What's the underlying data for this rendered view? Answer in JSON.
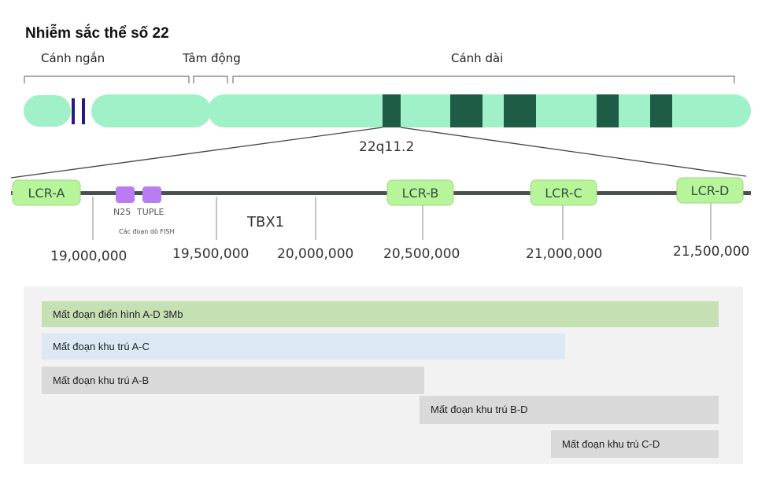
{
  "title": "Nhiễm sắc thể số 22",
  "regions": {
    "short_arm": "Cánh ngắn",
    "centromere": "Tâm động",
    "long_arm": "Cánh dài"
  },
  "band_label": "22q11.2",
  "lcrs": [
    {
      "label": "LCR-A"
    },
    {
      "label": "LCR-B"
    },
    {
      "label": "LCR-C"
    },
    {
      "label": "LCR-D"
    }
  ],
  "probes": {
    "n25": "N25",
    "tuple": "TUPLE",
    "caption": "Các đoạn dò FISH"
  },
  "gene": "TBX1",
  "coordinates": [
    "19,000,000",
    "19,500,000",
    "20,000,000",
    "20,500,000",
    "21,000,000",
    "21,500,000"
  ],
  "deletions": [
    {
      "label": "Mất đoạn điển hình A-D 3Mb",
      "color": "#c5e0b3"
    },
    {
      "label": "Mất đoạn khu trú A-C",
      "color": "#dce8f4"
    },
    {
      "label": "Mất đoạn khu trú A-B",
      "color": "#d9d9d9"
    },
    {
      "label": "Mất đoạn khu trú B-D",
      "color": "#d9d9d9"
    },
    {
      "label": "Mất đoạn khu trú C-D",
      "color": "#d9d9d9"
    }
  ],
  "colors": {
    "chromosome": "#a0f0c8",
    "band_dark": "#1f5c45",
    "centromere_mark": "#2a1a80",
    "lcr_fill": "#b8f59a",
    "panel_bg": "#f2f2f2"
  }
}
